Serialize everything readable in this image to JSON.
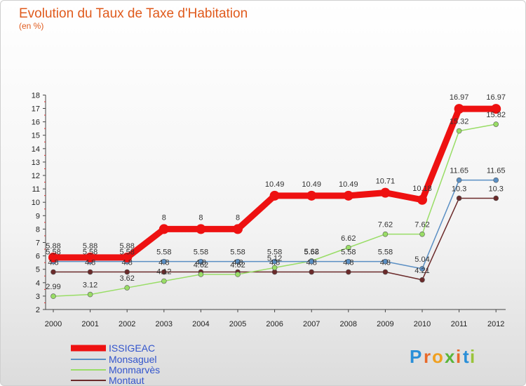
{
  "chart_data": {
    "type": "line",
    "title": "Evolution du Taux de Taxe d'Habitation",
    "subtitle": "(en %)",
    "xlabel": "",
    "ylabel": "",
    "x": [
      "2000",
      "2001",
      "2002",
      "2003",
      "2004",
      "2005",
      "2006",
      "2007",
      "2008",
      "2009",
      "2010",
      "2011",
      "2012"
    ],
    "ylim": [
      2,
      18
    ],
    "yticks": [
      "2",
      "3",
      "4",
      "5",
      "6",
      "7",
      "8",
      "9",
      "10",
      "11",
      "12",
      "13",
      "14",
      "15",
      "16",
      "17",
      "18"
    ],
    "grid": false,
    "legend_placement": "bottom-left",
    "series": [
      {
        "name": "ISSIGEAC",
        "color": "#ee1111",
        "values": [
          5.88,
          5.88,
          5.88,
          8,
          8,
          8,
          10.49,
          10.49,
          10.49,
          10.71,
          10.18,
          16.97,
          16.97
        ],
        "labels": [
          "5.88",
          "5.88",
          "5.88",
          "8",
          "8",
          "8",
          "10.49",
          "10.49",
          "10.49",
          "10.71",
          "10.18",
          "16.97",
          "16.97"
        ]
      },
      {
        "name": "Monsaguel",
        "color": "#5a8fc4",
        "values": [
          5.58,
          5.58,
          5.58,
          5.58,
          5.58,
          5.58,
          5.58,
          5.58,
          5.58,
          5.58,
          5.04,
          11.65,
          11.65
        ],
        "labels": [
          "5.58",
          "5.58",
          "5.58",
          "5.58",
          "5.58",
          "5.58",
          "5.58",
          "5.58",
          "5.58",
          "5.58",
          "5.04",
          "11.65",
          "11.65"
        ]
      },
      {
        "name": "Monmarvès",
        "color": "#99dd66",
        "values": [
          2.99,
          3.12,
          3.62,
          4.12,
          4.62,
          4.62,
          5.12,
          5.62,
          6.62,
          7.62,
          7.62,
          15.32,
          15.82
        ],
        "labels": [
          "2.99",
          "3.12",
          "3.62",
          "4.12",
          "4.62",
          "4.62",
          "5.12",
          "5.62",
          "6.62",
          "7.62",
          "7.62",
          "15.32",
          "15.82"
        ]
      },
      {
        "name": "Montaut",
        "color": "#6b2a2a",
        "values": [
          4.8,
          4.8,
          4.8,
          4.8,
          4.8,
          4.8,
          4.8,
          4.8,
          4.8,
          4.8,
          4.21,
          10.3,
          10.3
        ],
        "labels": [
          "4.8",
          "4.8",
          "4.8",
          "4.8",
          "4.8",
          "4.8",
          "4.8",
          "4.8",
          "4.8",
          "4.8",
          "4.21",
          "10.3",
          "10.3"
        ]
      }
    ]
  },
  "legend_text_color": "#3355cc",
  "brand": {
    "letters": [
      "P",
      "r",
      "o",
      "x",
      "i",
      "t",
      "i"
    ],
    "colors": [
      "#2a8fd8",
      "#e8692a",
      "#f0a020",
      "#5ab53a",
      "#e8692a",
      "#2a8fd8",
      "#9ac43a"
    ]
  }
}
